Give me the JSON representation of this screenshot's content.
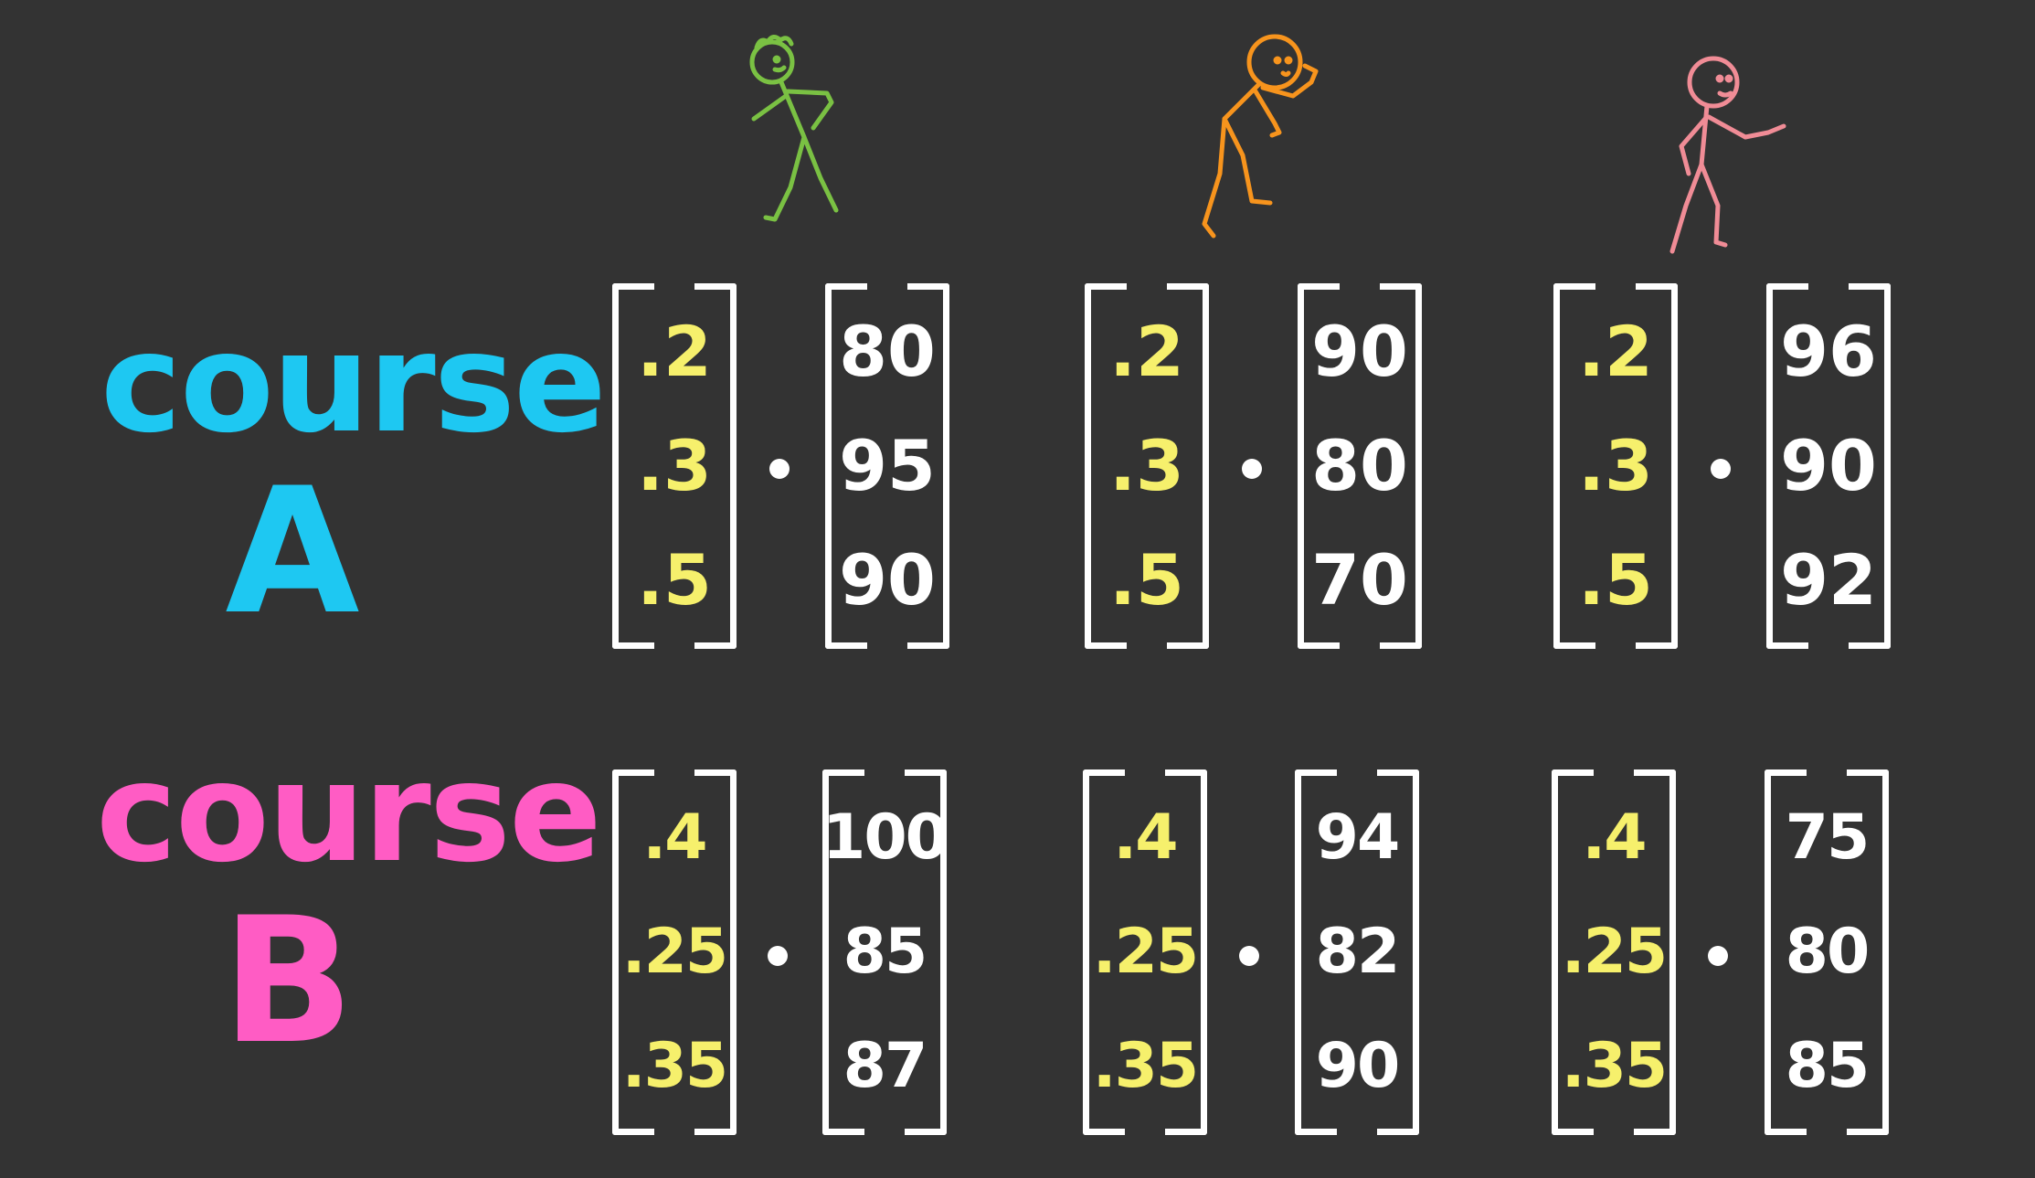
{
  "courses": [
    {
      "word": "course",
      "letter": "A",
      "color": "#1ec8f2",
      "students": [
        {
          "weights": [
            ".2",
            ".3",
            ".5"
          ],
          "scores": [
            "80",
            "95",
            "90"
          ]
        },
        {
          "weights": [
            ".2",
            ".3",
            ".5"
          ],
          "scores": [
            "90",
            "80",
            "70"
          ]
        },
        {
          "weights": [
            ".2",
            ".3",
            ".5"
          ],
          "scores": [
            "96",
            "90",
            "92"
          ]
        }
      ]
    },
    {
      "word": "course",
      "letter": "B",
      "color": "#ff5cc4",
      "students": [
        {
          "weights": [
            ".4",
            ".25",
            ".35"
          ],
          "scores": [
            "100",
            "85",
            "87"
          ]
        },
        {
          "weights": [
            ".4",
            ".25",
            ".35"
          ],
          "scores": [
            "94",
            "82",
            "90"
          ]
        },
        {
          "weights": [
            ".4",
            ".25",
            ".35"
          ],
          "scores": [
            "75",
            "80",
            "85"
          ]
        }
      ]
    }
  ],
  "figures": [
    {
      "icon": "green-stick-figure-icon",
      "color": "#7ac143"
    },
    {
      "icon": "orange-stick-figure-icon",
      "color": "#f7941d"
    },
    {
      "icon": "pink-stick-figure-icon",
      "color": "#f08c96"
    }
  ],
  "colors": {
    "background": "#333333",
    "weights": "#f6f06c",
    "scores": "#ffffff",
    "brackets": "#ffffff"
  }
}
